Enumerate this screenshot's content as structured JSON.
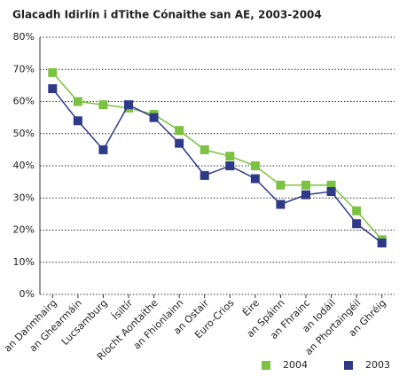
{
  "chart_data": {
    "type": "line",
    "title": "Glacadh Idirlín i dTithe Cónaithe san AE, 2003-2004",
    "categories": [
      "an Danmhairg",
      "an Ghearmáin",
      "Lucsamburg",
      "Ísiltír",
      "Ríocht Aontaithe",
      "an Fhionlainn",
      "an Ostair",
      "Euro-Crios",
      "Éire",
      "an Spáinn",
      "an Fhrainc",
      "an Iodáil",
      "an Phortaingéil",
      "an Ghréig"
    ],
    "series": [
      {
        "name": "2004",
        "color": "#7dc142",
        "values": [
          69,
          60,
          59,
          58,
          56,
          51,
          45,
          43,
          40,
          34,
          34,
          34,
          26,
          17
        ]
      },
      {
        "name": "2003",
        "color": "#2e3a87",
        "values": [
          64,
          54,
          45,
          59,
          55,
          47,
          37,
          40,
          36,
          28,
          31,
          32,
          22,
          16
        ]
      }
    ],
    "ylim": [
      0,
      80
    ],
    "yticks": [
      {
        "value": 0,
        "label": "0%"
      },
      {
        "value": 10,
        "label": "10%"
      },
      {
        "value": 20,
        "label": "20%"
      },
      {
        "value": 30,
        "label": "30%"
      },
      {
        "value": 40,
        "label": "40%"
      },
      {
        "value": 50,
        "label": "50%"
      },
      {
        "value": 60,
        "label": "60%"
      },
      {
        "value": 70,
        "label": "70%"
      },
      {
        "value": 80,
        "label": "80%"
      }
    ],
    "grid": true,
    "legend": "bottom"
  }
}
